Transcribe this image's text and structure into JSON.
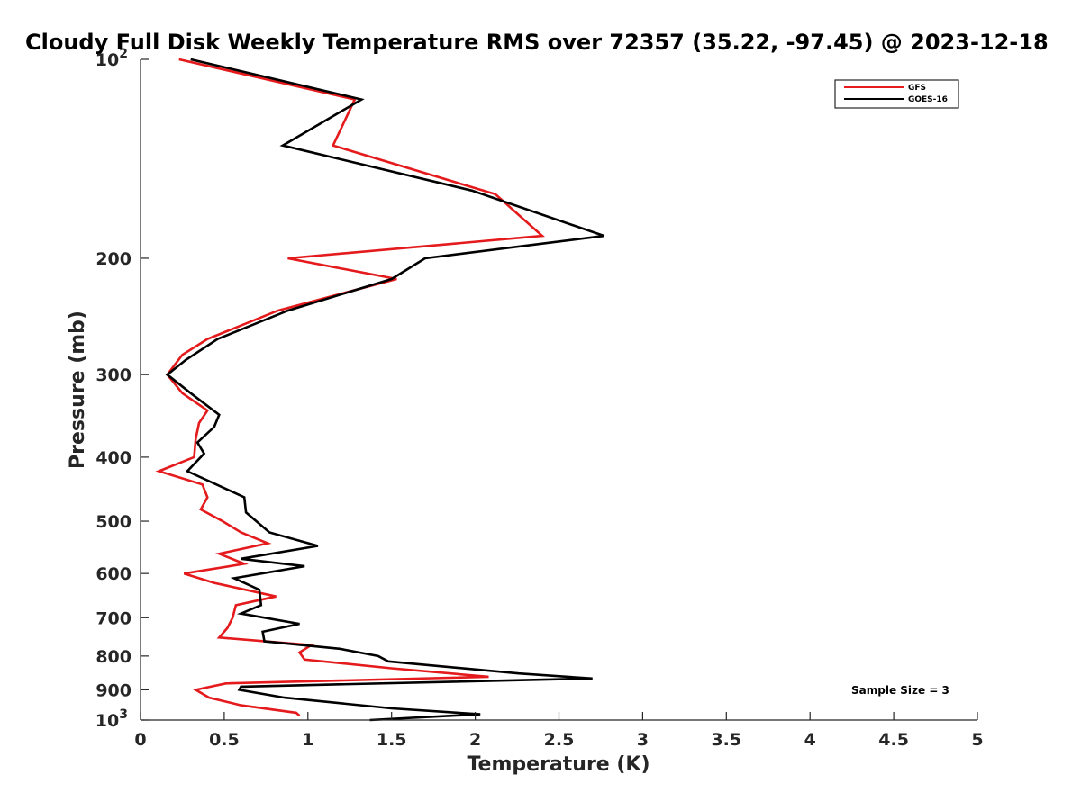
{
  "chart_data": {
    "type": "line",
    "title": "Cloudy Full Disk Weekly Temperature RMS over 72357 (35.22, -97.45) @ 2023-12-18",
    "xlabel": "Temperature (K)",
    "ylabel": "Pressure (mb)",
    "xlim": [
      0,
      5
    ],
    "ylim": [
      100,
      1000
    ],
    "y_scale": "log",
    "y_reversed": true,
    "x_ticks": [
      "0",
      "0.5",
      "1",
      "1.5",
      "2",
      "2.5",
      "3",
      "3.5",
      "4",
      "4.5",
      "5"
    ],
    "y_ticks": [
      {
        "value": 100,
        "label": "10",
        "exp": "2"
      },
      {
        "value": 200,
        "label": "200"
      },
      {
        "value": 300,
        "label": "300"
      },
      {
        "value": 400,
        "label": "400"
      },
      {
        "value": 500,
        "label": "500"
      },
      {
        "value": 600,
        "label": "600"
      },
      {
        "value": 700,
        "label": "700"
      },
      {
        "value": 800,
        "label": "800"
      },
      {
        "value": 900,
        "label": "900"
      },
      {
        "value": 1000,
        "label": "10",
        "exp": "3"
      }
    ],
    "legend_position": "top-right",
    "annotation": "Sample Size = 3",
    "series": [
      {
        "name": "GFS",
        "color": "#e41a1c",
        "points": [
          [
            0.23,
            100
          ],
          [
            1.28,
            115
          ],
          [
            1.15,
            135
          ],
          [
            2.12,
            160
          ],
          [
            2.4,
            185
          ],
          [
            0.88,
            200
          ],
          [
            1.53,
            215
          ],
          [
            0.82,
            240
          ],
          [
            0.4,
            265
          ],
          [
            0.25,
            280
          ],
          [
            0.16,
            300
          ],
          [
            0.25,
            320
          ],
          [
            0.4,
            340
          ],
          [
            0.35,
            355
          ],
          [
            0.33,
            375
          ],
          [
            0.32,
            400
          ],
          [
            0.11,
            420
          ],
          [
            0.37,
            440
          ],
          [
            0.4,
            460
          ],
          [
            0.36,
            480
          ],
          [
            0.49,
            500
          ],
          [
            0.6,
            520
          ],
          [
            0.76,
            540
          ],
          [
            0.47,
            560
          ],
          [
            0.62,
            580
          ],
          [
            0.26,
            600
          ],
          [
            0.44,
            620
          ],
          [
            0.81,
            650
          ],
          [
            0.57,
            670
          ],
          [
            0.55,
            700
          ],
          [
            0.52,
            725
          ],
          [
            0.47,
            750
          ],
          [
            1.02,
            770
          ],
          [
            0.95,
            790
          ],
          [
            0.98,
            810
          ],
          [
            1.5,
            835
          ],
          [
            2.08,
            860
          ],
          [
            0.51,
            880
          ],
          [
            0.33,
            900
          ],
          [
            0.41,
            925
          ],
          [
            0.6,
            950
          ],
          [
            0.93,
            975
          ],
          [
            0.95,
            985
          ]
        ]
      },
      {
        "name": "GOES-16",
        "color": "#000000",
        "points": [
          [
            0.3,
            100
          ],
          [
            1.32,
            115
          ],
          [
            0.85,
            135
          ],
          [
            1.98,
            158
          ],
          [
            2.77,
            185
          ],
          [
            1.7,
            200
          ],
          [
            1.5,
            215
          ],
          [
            0.88,
            240
          ],
          [
            0.46,
            265
          ],
          [
            0.27,
            285
          ],
          [
            0.16,
            300
          ],
          [
            0.3,
            320
          ],
          [
            0.47,
            345
          ],
          [
            0.44,
            360
          ],
          [
            0.34,
            380
          ],
          [
            0.38,
            395
          ],
          [
            0.28,
            420
          ],
          [
            0.62,
            460
          ],
          [
            0.63,
            485
          ],
          [
            0.77,
            520
          ],
          [
            1.06,
            545
          ],
          [
            0.6,
            570
          ],
          [
            0.98,
            585
          ],
          [
            0.56,
            610
          ],
          [
            0.71,
            635
          ],
          [
            0.72,
            670
          ],
          [
            0.6,
            690
          ],
          [
            0.95,
            715
          ],
          [
            0.73,
            735
          ],
          [
            0.74,
            760
          ],
          [
            1.19,
            780
          ],
          [
            1.42,
            800
          ],
          [
            1.48,
            815
          ],
          [
            2.26,
            850
          ],
          [
            2.7,
            865
          ],
          [
            0.6,
            890
          ],
          [
            0.59,
            900
          ],
          [
            0.86,
            925
          ],
          [
            1.5,
            960
          ],
          [
            2.03,
            980
          ],
          [
            1.37,
            1000
          ]
        ]
      }
    ]
  }
}
